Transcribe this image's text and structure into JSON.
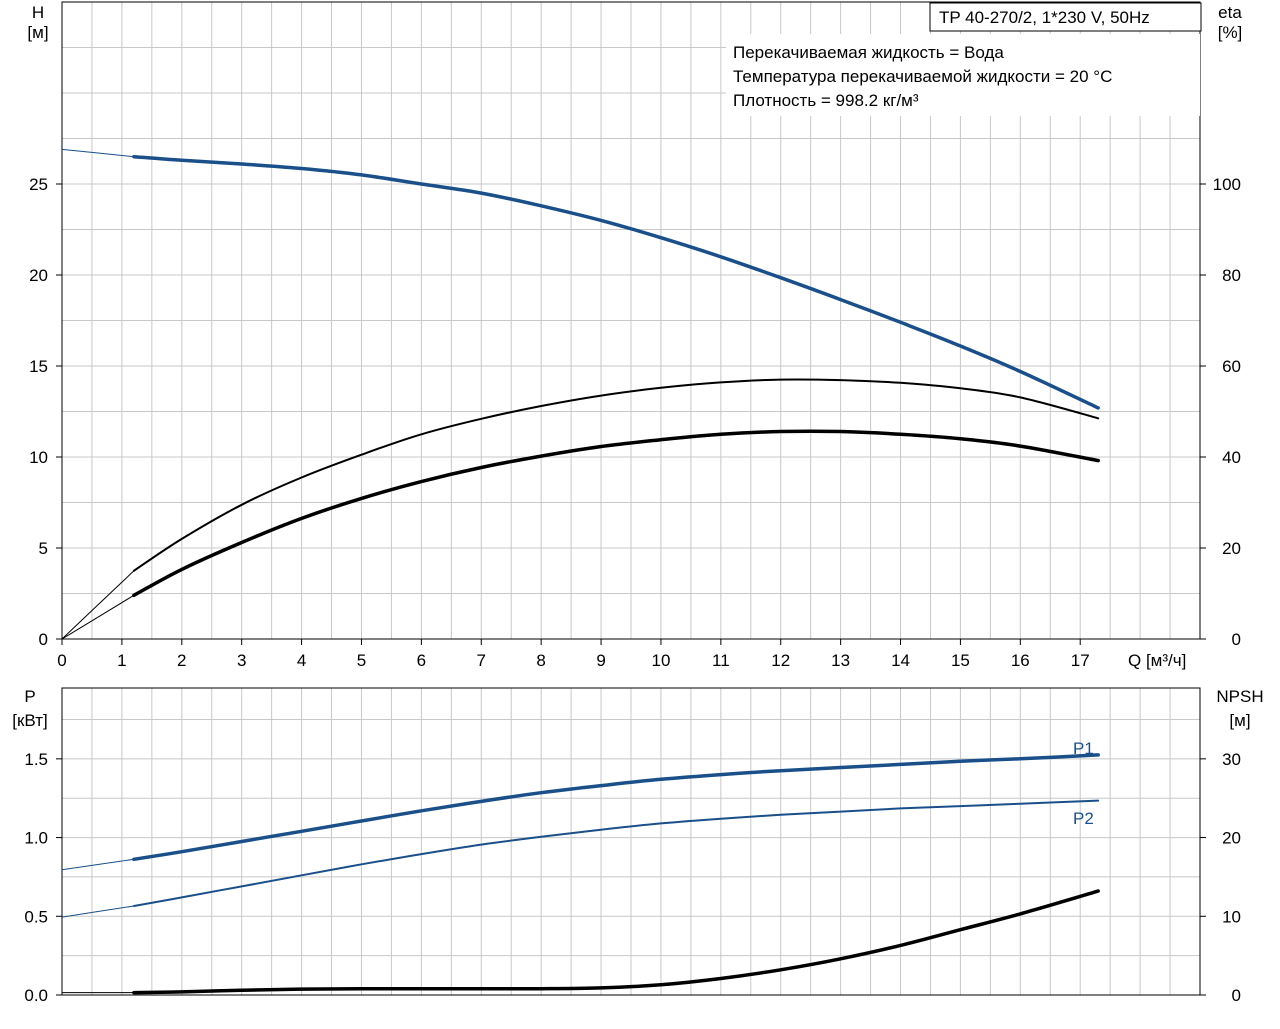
{
  "chart_data": [
    {
      "type": "line",
      "panel": "head-efficiency",
      "product": "TP 40-270/2, 1*230 V, 50Hz",
      "info_lines": [
        "Перекачиваемая жидкость = Вода",
        "Температура перекачиваемой жидкости = 20 °C",
        "Плотность = 998.2 кг/м³"
      ],
      "x_label": "Q [м³/ч]",
      "x_range": [
        0,
        19
      ],
      "x_ticks": [
        0,
        1,
        2,
        3,
        4,
        5,
        6,
        7,
        8,
        9,
        10,
        11,
        12,
        13,
        14,
        15,
        16,
        17
      ],
      "y_left": {
        "label_line1": "H",
        "label_line2": "[м]",
        "range": [
          0,
          35
        ],
        "ticks": [
          0,
          5,
          10,
          15,
          20,
          25
        ]
      },
      "y_right": {
        "label_line1": "eta",
        "label_line2": "[%]",
        "range": [
          0,
          140
        ],
        "ticks": [
          0,
          20,
          40,
          60,
          80,
          100
        ]
      },
      "grid": true,
      "series": [
        {
          "id": "head",
          "axis": "left",
          "color": "#1a4f8a",
          "x": [
            0,
            1.2,
            2,
            3,
            4,
            5,
            6,
            7,
            8,
            9,
            10,
            11,
            12,
            13,
            14,
            15,
            16,
            17.3
          ],
          "y": [
            26.9,
            26.5,
            26.3,
            26.1,
            25.85,
            25.5,
            25.0,
            24.5,
            23.8,
            23.0,
            22.05,
            21.0,
            19.85,
            18.65,
            17.4,
            16.1,
            14.7,
            12.7
          ],
          "operating_from": 1.2
        },
        {
          "id": "eta-pump",
          "axis": "right",
          "color": "#000000",
          "x": [
            0,
            1.2,
            2,
            3,
            4,
            5,
            6,
            7,
            8,
            9,
            10,
            11,
            12,
            13,
            14,
            15,
            16,
            17.3
          ],
          "y": [
            0,
            15,
            22,
            29.5,
            35.5,
            40.5,
            45,
            48.4,
            51.2,
            53.5,
            55.2,
            56.4,
            57.0,
            56.9,
            56.3,
            55.1,
            53.1,
            48.5
          ],
          "operating_from": 1.2
        },
        {
          "id": "eta-total",
          "axis": "right",
          "color": "#000000",
          "x": [
            0,
            1.2,
            2,
            3,
            4,
            5,
            6,
            7,
            8,
            9,
            10,
            11,
            12,
            13,
            14,
            15,
            16,
            17.3
          ],
          "y": [
            0,
            9.6,
            15.3,
            21.2,
            26.5,
            30.9,
            34.6,
            37.7,
            40.2,
            42.3,
            43.8,
            45.0,
            45.6,
            45.6,
            45.0,
            44.0,
            42.4,
            39.2
          ],
          "operating_from": 1.2
        }
      ]
    },
    {
      "type": "line",
      "panel": "power-npsh",
      "x_range": [
        0,
        19
      ],
      "x_ticks": [
        0,
        1,
        2,
        3,
        4,
        5,
        6,
        7,
        8,
        9,
        10,
        11,
        12,
        13,
        14,
        15,
        16,
        17
      ],
      "y_left": {
        "label_line1": "P",
        "label_line2": "[кВт]",
        "range": [
          0,
          1.95
        ],
        "ticks": [
          0.0,
          0.5,
          1.0,
          1.5
        ],
        "tick_labels": [
          "0.0",
          "0.5",
          "1.0",
          "1.5"
        ]
      },
      "y_right": {
        "label_line1": "NPSH",
        "label_line2": "[м]",
        "range": [
          0,
          39
        ],
        "ticks": [
          0,
          10,
          20,
          30
        ]
      },
      "grid": true,
      "series": [
        {
          "id": "P1",
          "name": "P1",
          "axis": "left",
          "color": "#1a4f8a",
          "x": [
            0,
            1.2,
            2,
            3,
            4,
            5,
            6,
            7,
            8,
            9,
            10,
            11,
            12,
            13,
            14,
            15,
            16,
            17.3
          ],
          "y": [
            0.795,
            0.862,
            0.91,
            0.975,
            1.04,
            1.105,
            1.17,
            1.23,
            1.285,
            1.33,
            1.37,
            1.4,
            1.425,
            1.445,
            1.465,
            1.485,
            1.5,
            1.525
          ],
          "operating_from": 1.2
        },
        {
          "id": "P2",
          "name": "P2",
          "axis": "left",
          "color": "#1a4f8a",
          "x": [
            0,
            1.2,
            2,
            3,
            4,
            5,
            6,
            7,
            8,
            9,
            10,
            11,
            12,
            13,
            14,
            15,
            16,
            17.3
          ],
          "y": [
            0.495,
            0.565,
            0.62,
            0.69,
            0.76,
            0.83,
            0.895,
            0.955,
            1.005,
            1.05,
            1.09,
            1.12,
            1.145,
            1.165,
            1.185,
            1.2,
            1.215,
            1.235
          ],
          "operating_from": 1.2
        },
        {
          "id": "NPSH",
          "axis": "right",
          "color": "#000000",
          "x": [
            0,
            1.2,
            2,
            3,
            4,
            5,
            6,
            7,
            8,
            9,
            10,
            11,
            12,
            13,
            14,
            15,
            16,
            17.3
          ],
          "y": [
            0.3,
            0.3,
            0.4,
            0.6,
            0.75,
            0.8,
            0.8,
            0.8,
            0.8,
            0.9,
            1.3,
            2.1,
            3.2,
            4.6,
            6.3,
            8.3,
            10.3,
            13.2
          ],
          "operating_from": 1.2
        }
      ]
    }
  ]
}
